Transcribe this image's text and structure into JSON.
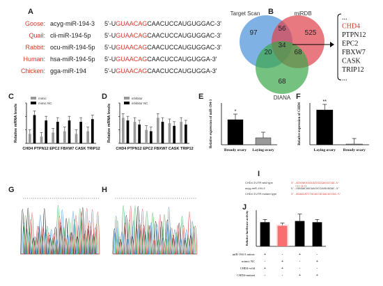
{
  "panels": {
    "A": "A",
    "B": "B",
    "C": "C",
    "D": "D",
    "E": "E",
    "F": "F",
    "G": "G",
    "H": "H",
    "I": "I",
    "J": "J"
  },
  "colors": {
    "red": "#d9382a",
    "target_scan": "#4a90d8",
    "mirdb": "#e0404a",
    "diana": "#3aa64a",
    "bar_dark": "#000000",
    "bar_gray": "#999999",
    "bar_red": "#ff1a1a"
  },
  "alignment": {
    "rows": [
      {
        "species": "Goose:",
        "name": "acyg-miR-194-3",
        "pre": "5'-U",
        "seed": "GUAACAG",
        "post": "CAACUCCAUGUGGAC-3'"
      },
      {
        "species": "Quail:",
        "name": "cli-miR-194-5p",
        "pre": "5'-U",
        "seed": "GUAACAG",
        "post": "CAACUCCAUGUGGAC-3'"
      },
      {
        "species": "Rabbit:",
        "name": "ocu-miR-194-5p",
        "pre": "5'-U",
        "seed": "GUAACAG",
        "post": "CAACUCCAUGUGGAC-3'"
      },
      {
        "species": "Human:",
        "name": "hsa-miR-194-5p",
        "pre": "5'-U",
        "seed": "GUAACAG",
        "post": "CAACUCCAUGUGGA-3'"
      },
      {
        "species": "Chicken:",
        "name": "gga-miR-194",
        "pre": "5'-U",
        "seed": "GUAACAG",
        "post": "CAACUCCAUGUGGA-3'"
      }
    ]
  },
  "venn": {
    "labels": {
      "target_scan": "Target Scan",
      "mirdb": "miRDB",
      "diana": "DIANA"
    },
    "counts": {
      "ts_only": "97",
      "ts_mirdb": "56",
      "mirdb_only": "525",
      "center": "34",
      "ts_diana": "20",
      "mirdb_diana": "68",
      "diana_only": "68"
    },
    "genes": [
      "...",
      "CHD4",
      "PTPN12",
      "EPC2",
      "FBXW7",
      "CASK",
      "TRIP12",
      "..."
    ]
  },
  "panel_c": {
    "legend": [
      "mimic",
      "mimic NC"
    ],
    "ylabel": "Relative mRNA levels",
    "xlabel": "CHD4 PTPN12 EPC2 FBXW7 CASK TRIP12"
  },
  "panel_d": {
    "legend": [
      "inhibitor",
      "inhibitor NC"
    ],
    "ylabel": "Relative mRNA levels",
    "xlabel": "CHD4 PTPN12 EPC2 FBXW7 CASK TRIP12"
  },
  "panel_e": {
    "ylabel": "Relative expression of miR-194-3",
    "star": "*",
    "categories": [
      "Broody ovary",
      "Laying ovary"
    ]
  },
  "panel_f": {
    "ylabel": "Relative expression of CHD4",
    "star": "**",
    "categories": [
      "Laying ovary",
      "Broody ovary"
    ]
  },
  "panel_i": {
    "rows": [
      {
        "label": "CHD4 3'UTR wild type",
        "seq": "3'-ACUUGUCUGCACCGCGACGCCGG-5'"
      },
      {
        "label": "acyg-miR-194-3",
        "seq": "5'-UGUAACAGCAACUCCAUGUGGAC-3'"
      },
      {
        "label": "CHD4 3'UTR mutant type",
        "seq": "3'-ACAACATCTGCACCGCGACGCCGG-5'"
      }
    ]
  },
  "panel_j": {
    "ylabel": "Relative luciferase activity",
    "row_labels": [
      "miR-194-3 mimic",
      "mimic NC",
      "CHD4-wild",
      "CHD4-mutant"
    ],
    "signs": [
      [
        "+",
        "-",
        "+",
        "-"
      ],
      [
        "-",
        "+",
        "-",
        "+"
      ],
      [
        "+",
        "+",
        "-",
        "-"
      ],
      [
        "-",
        "-",
        "+",
        "+"
      ]
    ]
  },
  "chart_data": [
    {
      "type": "bar",
      "panel": "C",
      "categories": [
        "CHD4",
        "PTPN12",
        "EPC2",
        "FBXW7",
        "CASK",
        "TRIP12"
      ],
      "series": [
        {
          "name": "mimic",
          "values": [
            0.35,
            0.25,
            0.4,
            0.45,
            0.35,
            0.45
          ]
        },
        {
          "name": "mimic NC",
          "values": [
            1.05,
            0.85,
            0.8,
            0.85,
            0.8,
            0.9
          ]
        }
      ],
      "ylabel": "Relative mRNA levels",
      "ylim": [
        0,
        1.5
      ]
    },
    {
      "type": "bar",
      "panel": "D",
      "categories": [
        "CHD4",
        "PTPN12",
        "EPC2",
        "FBXW7",
        "CASK",
        "TRIP12"
      ],
      "series": [
        {
          "name": "inhibitor",
          "values": [
            0.95,
            0.8,
            0.5,
            0.95,
            0.75,
            0.8
          ]
        },
        {
          "name": "inhibitor NC",
          "values": [
            0.85,
            0.7,
            0.45,
            0.8,
            0.65,
            0.7
          ]
        }
      ],
      "ylabel": "Relative mRNA levels",
      "ylim": [
        0,
        1.5
      ]
    },
    {
      "type": "bar",
      "panel": "E",
      "categories": [
        "Broody ovary",
        "Laying ovary"
      ],
      "values": [
        1.8,
        0.5
      ],
      "ylabel": "Relative expression of miR-194-3",
      "ylim": [
        0,
        3
      ]
    },
    {
      "type": "bar",
      "panel": "F",
      "categories": [
        "Laying ovary",
        "Broody ovary"
      ],
      "values": [
        50,
        1
      ],
      "ylabel": "Relative expression of CHD4",
      "ylim": [
        0,
        60
      ]
    },
    {
      "type": "bar",
      "panel": "J",
      "categories": [
        "1",
        "2",
        "3",
        "4"
      ],
      "values": [
        1.0,
        0.85,
        1.05,
        1.0
      ],
      "ylabel": "Relative luciferase activity",
      "ylim": [
        0,
        1.5
      ]
    }
  ]
}
